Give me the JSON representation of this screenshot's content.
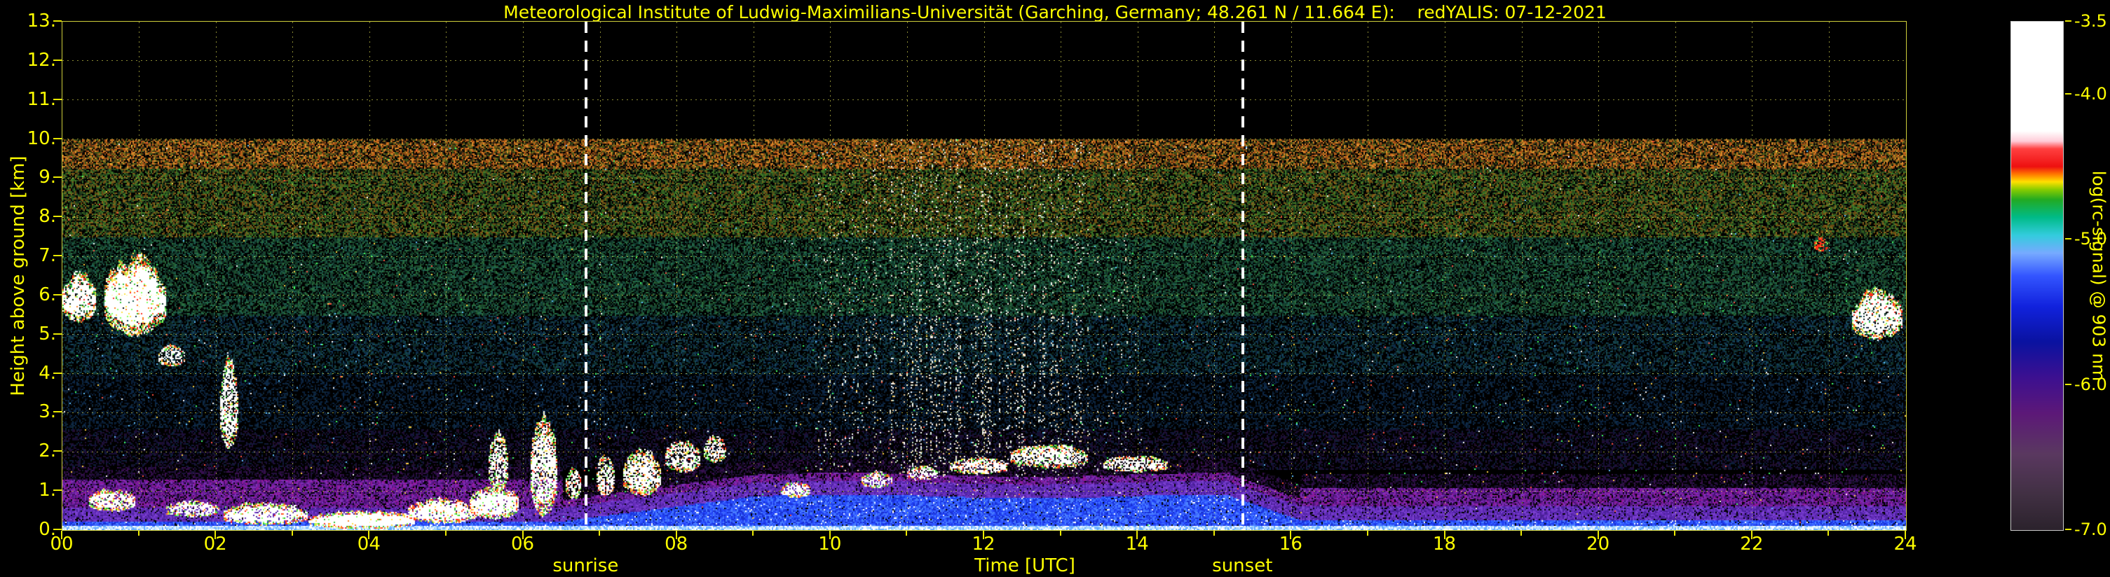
{
  "title": "Meteorological Institute of Ludwig-Maximilians-Universität (Garching, Germany; 48.261 N / 11.664 E):    redYALIS: 07-12-2021",
  "chart_data": {
    "type": "heatmap",
    "title": "Meteorological Institute of Ludwig-Maximilians-Universität (Garching, Germany; 48.261 N / 11.664 E):    redYALIS: 07-12-2021",
    "station": "Garching, Germany",
    "coordinates": "48.261 N / 11.664 E",
    "instrument": "redYALIS",
    "date": "07-12-2021",
    "xlabel": "Time [UTC]",
    "ylabel": "Height above ground [km]",
    "xlim": [
      0,
      24
    ],
    "ylim": [
      0,
      13
    ],
    "data_top_km": 10,
    "x_ticks": [
      "00",
      "02",
      "04",
      "06",
      "08",
      "10",
      "12",
      "14",
      "16",
      "18",
      "20",
      "22",
      "24"
    ],
    "y_ticks": [
      "0.",
      "1.",
      "2.",
      "3.",
      "4.",
      "5.",
      "6.",
      "7.",
      "8.",
      "9.",
      "10.",
      "11.",
      "12.",
      "13."
    ],
    "grid": {
      "style": "dotted",
      "color": "#f8f85a",
      "x_step_hours": 1,
      "y_step_km": 1
    },
    "colors": {
      "background": "#000000",
      "axis_text": "#ffff00",
      "frame": "#cfcf3a",
      "sun_marker": "#ffffff"
    },
    "sunrise": {
      "label": "sunrise",
      "time_utc": 6.82
    },
    "sunset": {
      "label": "sunset",
      "time_utc": 15.37
    },
    "colorbar": {
      "label": "log(rc-signal) @ 903 nm",
      "range": [
        -3.5,
        -7.0
      ],
      "ticks": [
        {
          "label": "-3.5",
          "value": -3.5
        },
        {
          "label": "-4.0",
          "value": -4.0
        },
        {
          "label": "-5.0",
          "value": -5.0
        },
        {
          "label": "-6.0",
          "value": -6.0
        },
        {
          "label": "-7.0",
          "value": -7.0
        }
      ],
      "stops": [
        {
          "p": 0.0,
          "c": "#ffffff"
        },
        {
          "p": 0.215,
          "c": "#ffffff"
        },
        {
          "p": 0.235,
          "c": "#ffccd8"
        },
        {
          "p": 0.25,
          "c": "#ff4040"
        },
        {
          "p": 0.285,
          "c": "#ee1010"
        },
        {
          "p": 0.3,
          "c": "#ff7700"
        },
        {
          "p": 0.315,
          "c": "#ffe000"
        },
        {
          "p": 0.33,
          "c": "#88cc00"
        },
        {
          "p": 0.35,
          "c": "#22aa22"
        },
        {
          "p": 0.385,
          "c": "#00bb88"
        },
        {
          "p": 0.42,
          "c": "#33ccdd"
        },
        {
          "p": 0.455,
          "c": "#77aaff"
        },
        {
          "p": 0.5,
          "c": "#3355ff"
        },
        {
          "p": 0.56,
          "c": "#1122dd"
        },
        {
          "p": 0.63,
          "c": "#0a12a0"
        },
        {
          "p": 0.7,
          "c": "#3c1090"
        },
        {
          "p": 0.77,
          "c": "#5c1878"
        },
        {
          "p": 0.85,
          "c": "#5a3860"
        },
        {
          "p": 0.93,
          "c": "#413043"
        },
        {
          "p": 1.0,
          "c": "#2b222c"
        }
      ]
    },
    "features": {
      "bands": [
        {
          "h": [
            9.25,
            10.0
          ],
          "density": 0.78,
          "colors": [
            "#9a4a14",
            "#c2641c",
            "#d98a2b",
            "#7a6a1c",
            "#3c5518",
            "#522f0e",
            "#222014"
          ]
        },
        {
          "h": [
            7.5,
            9.25
          ],
          "density": 0.7,
          "colors": [
            "#6b4a12",
            "#2f5e1e",
            "#417a28",
            "#84621c",
            "#16301a",
            "#24401c"
          ]
        },
        {
          "h": [
            5.5,
            7.5
          ],
          "density": 0.62,
          "colors": [
            "#1e4d2a",
            "#2a6e3f",
            "#1d5e4e",
            "#174034",
            "#0e2a20",
            "#0f3828"
          ]
        },
        {
          "h": [
            4.0,
            5.5
          ],
          "density": 0.5,
          "colors": [
            "#123a3a",
            "#17485c",
            "#0f3050",
            "#0a1f33",
            "#102c22"
          ]
        },
        {
          "h": [
            2.6,
            4.0
          ],
          "density": 0.4,
          "colors": [
            "#0d2a4a",
            "#0a1f3a",
            "#10283a",
            "#071426"
          ]
        },
        {
          "h": [
            1.55,
            2.6
          ],
          "density": 0.42,
          "colors": [
            "#140f33",
            "#1d0f3a",
            "#0d1f3a",
            "#220f2e"
          ]
        }
      ],
      "sparkle_colors": [
        "#ffffff",
        "#ff5040",
        "#40ff60",
        "#ffd040",
        "#60c0ff"
      ],
      "daylight_noise_colors": [
        "#ffffff",
        "#f0e8d8",
        "#e8c89a",
        "#d0e8d0"
      ],
      "fringe_colors": [
        "#ff3020",
        "#ff8020",
        "#30c030",
        "#80ff60",
        "#ffe040"
      ],
      "noise_columns": {
        "t_range": [
          9.8,
          13.9
        ],
        "peak_t": 11.8,
        "sigma": 1.7,
        "max_boost": 0.2
      },
      "boundary_layer": {
        "ground_colors": [
          "#9fd4ff",
          "#cfeaff",
          "#ffffff",
          "#64a8ff"
        ],
        "blue_colors": [
          "#1e3cf0",
          "#2a50ff",
          "#1830d0",
          "#3a66ff",
          "#4a80ff"
        ],
        "violet_colors": [
          "#6a30c0",
          "#5a28b0",
          "#7a40d0",
          "#4a2098"
        ],
        "purple_colors": [
          "#5a1888",
          "#6e20a0",
          "#471070",
          "#8030b8",
          "#90189a"
        ],
        "dark_purple_colors": [
          "#38104f",
          "#2a0c40",
          "#150a20",
          "#1a1238"
        ],
        "pre_sunrise_top_km": 0.24,
        "ramp": [
          6.5,
          9.0
        ],
        "midday_top_km": 0.88,
        "evening_drop": [
          15.2,
          16.1
        ],
        "night_top_km": 0.28,
        "purple_band_thickness_km": {
          "night": 1.05,
          "day": 0.55,
          "evening": 0.82
        }
      },
      "clouds": [
        {
          "t": [
            0.0,
            0.45
          ],
          "h": [
            5.35,
            6.6
          ],
          "d": 0.8
        },
        {
          "t": [
            0.55,
            1.35
          ],
          "h": [
            5.0,
            7.0
          ],
          "d": 0.9
        },
        {
          "t": [
            1.25,
            1.6
          ],
          "h": [
            4.2,
            4.75
          ],
          "d": 0.5
        },
        {
          "t": [
            2.05,
            2.3
          ],
          "h": [
            2.1,
            4.35
          ],
          "d": 0.65
        },
        {
          "t": [
            0.35,
            0.95
          ],
          "h": [
            0.5,
            1.05
          ],
          "d": 0.75
        },
        {
          "t": [
            1.35,
            2.05
          ],
          "h": [
            0.35,
            0.75
          ],
          "d": 0.6
        },
        {
          "t": [
            2.1,
            3.2
          ],
          "h": [
            0.15,
            0.7
          ],
          "d": 0.8
        },
        {
          "t": [
            3.2,
            4.6
          ],
          "h": [
            0.05,
            0.5
          ],
          "d": 0.95
        },
        {
          "t": [
            4.5,
            5.4
          ],
          "h": [
            0.2,
            0.8
          ],
          "d": 0.85
        },
        {
          "t": [
            5.3,
            5.95
          ],
          "h": [
            0.3,
            1.1
          ],
          "d": 0.85
        },
        {
          "t": [
            5.55,
            5.8
          ],
          "h": [
            1.0,
            2.5
          ],
          "d": 0.55
        },
        {
          "t": [
            6.1,
            6.45
          ],
          "h": [
            0.4,
            2.9
          ],
          "d": 0.7
        },
        {
          "t": [
            6.55,
            6.75
          ],
          "h": [
            0.8,
            1.6
          ],
          "d": 0.55
        },
        {
          "t": [
            6.95,
            7.2
          ],
          "h": [
            0.9,
            1.9
          ],
          "d": 0.6
        },
        {
          "t": [
            7.3,
            7.8
          ],
          "h": [
            0.9,
            2.05
          ],
          "d": 0.7
        },
        {
          "t": [
            7.85,
            8.3
          ],
          "h": [
            1.5,
            2.3
          ],
          "d": 0.6
        },
        {
          "t": [
            8.35,
            8.65
          ],
          "h": [
            1.75,
            2.4
          ],
          "d": 0.5
        },
        {
          "t": [
            9.35,
            9.75
          ],
          "h": [
            0.85,
            1.25
          ],
          "d": 0.6
        },
        {
          "t": [
            10.4,
            10.8
          ],
          "h": [
            1.1,
            1.5
          ],
          "d": 0.55
        },
        {
          "t": [
            11.0,
            11.4
          ],
          "h": [
            1.3,
            1.65
          ],
          "d": 0.55
        },
        {
          "t": [
            11.55,
            12.3
          ],
          "h": [
            1.45,
            1.85
          ],
          "d": 0.65
        },
        {
          "t": [
            12.35,
            13.35
          ],
          "h": [
            1.6,
            2.2
          ],
          "d": 0.7
        },
        {
          "t": [
            13.55,
            14.4
          ],
          "h": [
            1.5,
            1.9
          ],
          "d": 0.6
        },
        {
          "t": [
            22.8,
            23.0
          ],
          "h": [
            7.15,
            7.5
          ],
          "d": 0.45,
          "c": "#ff3018"
        },
        {
          "t": [
            23.3,
            23.95
          ],
          "h": [
            4.9,
            6.15
          ],
          "d": 0.8
        }
      ]
    }
  }
}
